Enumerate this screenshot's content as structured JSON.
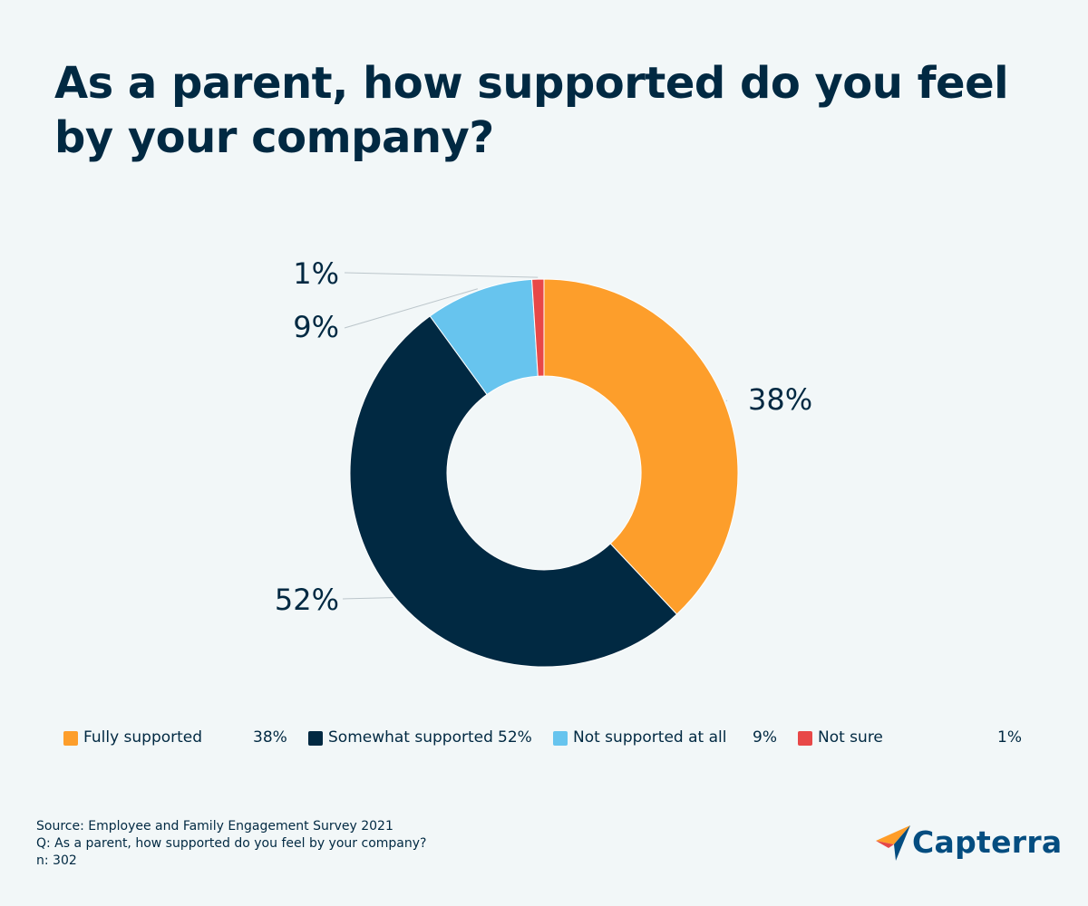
{
  "title": "As a parent, how supported do you feel by your company?",
  "chart_data": {
    "type": "pie",
    "donut": true,
    "categories": [
      "Fully supported",
      "Somewhat supported",
      "Not supported at all",
      "Not sure"
    ],
    "values": [
      38,
      52,
      9,
      1
    ],
    "value_labels": [
      "38%",
      "52%",
      "9%",
      "1%"
    ],
    "colors": [
      "#fd9e2b",
      "#012942",
      "#67c4ee",
      "#e84848"
    ],
    "legend_position": "bottom"
  },
  "legend": [
    {
      "label": "Fully supported",
      "value": "38%",
      "color": "#fd9e2b"
    },
    {
      "label": "Somewhat supported",
      "value": "52%",
      "color": "#012942"
    },
    {
      "label": "Not supported at all",
      "value": "9%",
      "color": "#67c4ee"
    },
    {
      "label": "Not sure",
      "value": "1%",
      "color": "#e84848"
    }
  ],
  "source": {
    "line1": "Source: Employee and Family Engagement Survey 2021",
    "line2": "Q: As a parent, how supported do you feel by your company?",
    "line3": "n: 302"
  },
  "logo": {
    "name": "Capterra",
    "icon": "capterra-arrow-icon"
  }
}
